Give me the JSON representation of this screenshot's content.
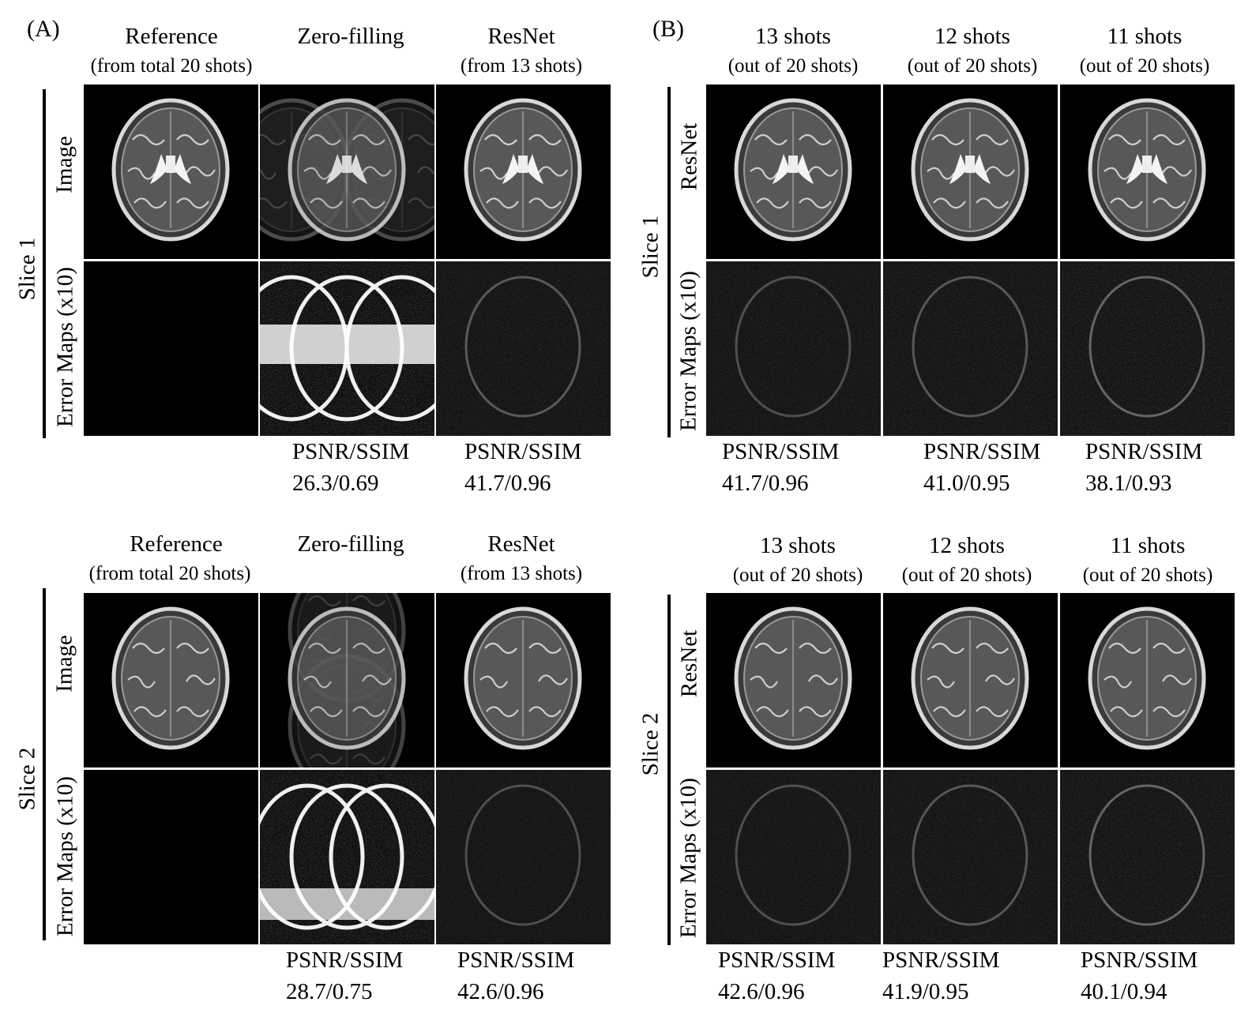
{
  "panel_a_label": "(A)",
  "panel_b_label": "(B)",
  "col_a": [
    {
      "title": "Reference",
      "sub": "(from total 20 shots)"
    },
    {
      "title": "Zero-filling",
      "sub": ""
    },
    {
      "title": "ResNet",
      "sub": "(from 13 shots)"
    }
  ],
  "col_b": [
    {
      "title": "13 shots",
      "sub": "(out of 20 shots)"
    },
    {
      "title": "12 shots",
      "sub": "(out of 20 shots)"
    },
    {
      "title": "11 shots",
      "sub": "(out of 20 shots)"
    }
  ],
  "row_labels": {
    "slice1": "Slice 1",
    "slice2": "Slice 2",
    "image": "Image",
    "resnet": "ResNet",
    "error": "Error Maps (x10)"
  },
  "metric_label": "PSNR/SSIM",
  "metrics": {
    "a1": [
      "26.3/0.69",
      "41.7/0.96"
    ],
    "b1": [
      "41.7/0.96",
      "41.0/0.95",
      "38.1/0.93"
    ],
    "a2": [
      "28.7/0.75",
      "42.6/0.96"
    ],
    "b2": [
      "42.6/0.96",
      "41.9/0.95",
      "40.1/0.94"
    ]
  }
}
